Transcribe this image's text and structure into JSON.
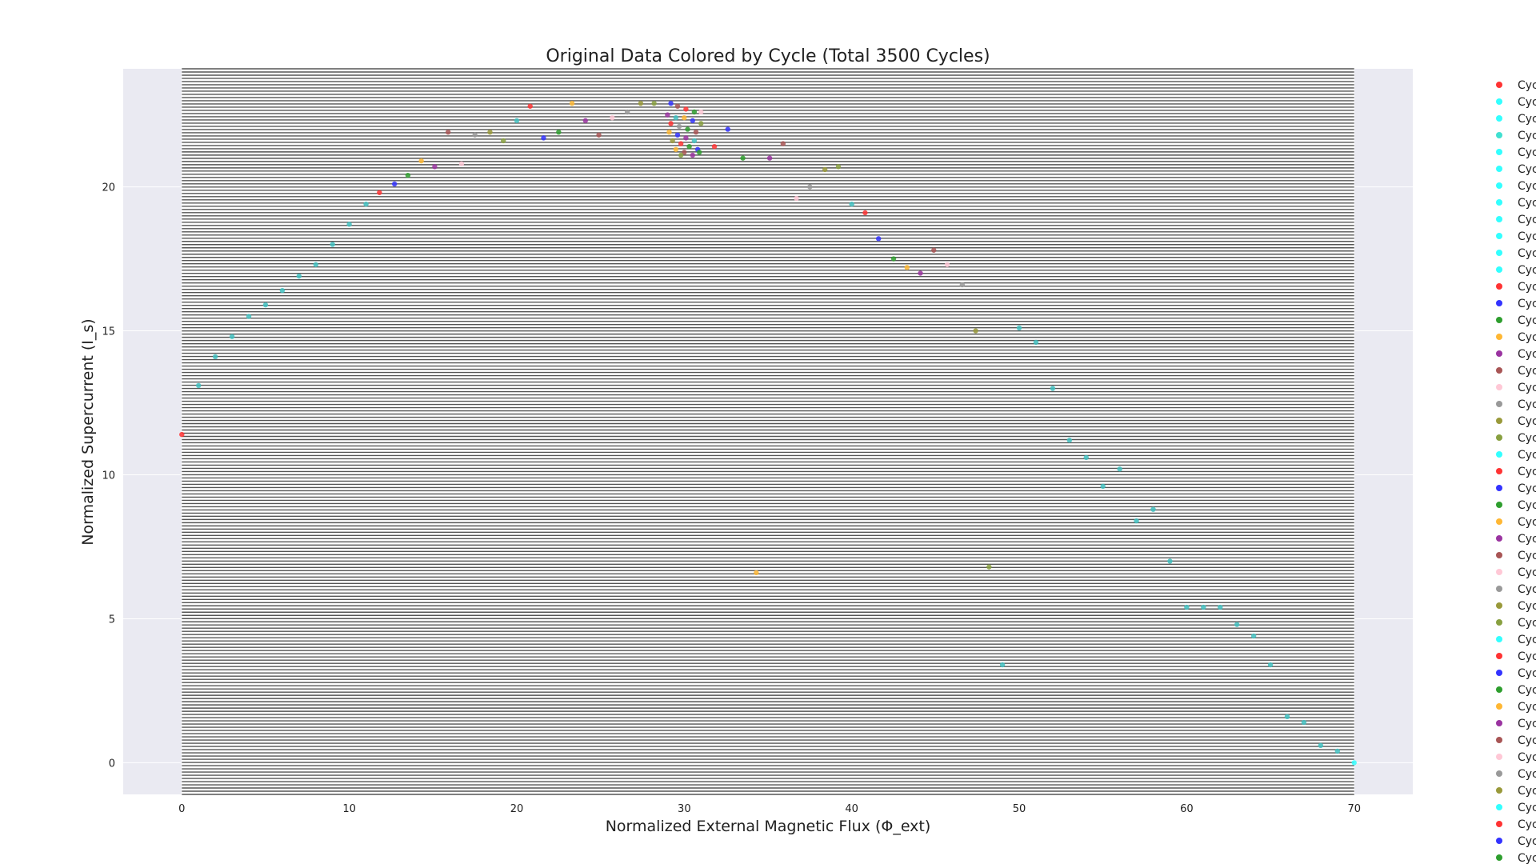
{
  "chart_data": {
    "type": "scatter",
    "title": "Original Data Colored by Cycle (Total 3500 Cycles)",
    "xlabel": "Normalized External Magnetic Flux (Φ_ext)",
    "ylabel": "Normalized Supercurrent (I_s)",
    "xlim": [
      -3.5,
      73.5
    ],
    "ylim": [
      -1.1,
      24.1
    ],
    "x_ticks": [
      0,
      10,
      20,
      30,
      40,
      50,
      60,
      70
    ],
    "y_ticks": [
      0,
      5,
      10,
      15,
      20
    ],
    "grid": true,
    "background": "#eaeaf2",
    "line_region": {
      "x_start": 0,
      "x_end": 70,
      "y_start": -1.1,
      "y_end": 24.1,
      "line_count": 228,
      "color": "#555555"
    },
    "legend": {
      "placement": "outside-right",
      "entries": [
        {
          "label": "Cyc",
          "color": "#ff3333"
        },
        {
          "label": "Cyc",
          "color": "#33ffff"
        },
        {
          "label": "Cyc",
          "color": "#33ffff"
        },
        {
          "label": "Cyc",
          "color": "#40e0d0"
        },
        {
          "label": "Cyc",
          "color": "#33ffff"
        },
        {
          "label": "Cyc",
          "color": "#33ffff"
        },
        {
          "label": "Cyc",
          "color": "#33ffff"
        },
        {
          "label": "Cyc",
          "color": "#33ffff"
        },
        {
          "label": "Cyc",
          "color": "#33ffff"
        },
        {
          "label": "Cyc",
          "color": "#33ffff"
        },
        {
          "label": "Cyc",
          "color": "#33ffff"
        },
        {
          "label": "Cyc",
          "color": "#33ffff"
        },
        {
          "label": "Cyc",
          "color": "#ff3333"
        },
        {
          "label": "Cyc",
          "color": "#3333ff"
        },
        {
          "label": "Cyc",
          "color": "#2e9e2e"
        },
        {
          "label": "Cyc",
          "color": "#ffb733"
        },
        {
          "label": "Cyc",
          "color": "#9a33a0"
        },
        {
          "label": "Cyc",
          "color": "#a85555"
        },
        {
          "label": "Cyc",
          "color": "#ffc8d6"
        },
        {
          "label": "Cyc",
          "color": "#999999"
        },
        {
          "label": "Cyc",
          "color": "#99993a"
        },
        {
          "label": "Cyc",
          "color": "#88a040"
        },
        {
          "label": "Cyc",
          "color": "#33ffff"
        },
        {
          "label": "Cyc",
          "color": "#ff3333"
        },
        {
          "label": "Cyc",
          "color": "#3333ff"
        },
        {
          "label": "Cyc",
          "color": "#2e9e2e"
        },
        {
          "label": "Cyc",
          "color": "#ffb733"
        },
        {
          "label": "Cyc",
          "color": "#9a33a0"
        },
        {
          "label": "Cyc",
          "color": "#a85555"
        },
        {
          "label": "Cyc",
          "color": "#ffc8d6"
        },
        {
          "label": "Cyc",
          "color": "#999999"
        },
        {
          "label": "Cyc",
          "color": "#99993a"
        },
        {
          "label": "Cyc",
          "color": "#88a040"
        },
        {
          "label": "Cyc",
          "color": "#33ffff"
        },
        {
          "label": "Cyc",
          "color": "#ff3333"
        },
        {
          "label": "Cyc",
          "color": "#3333ff"
        },
        {
          "label": "Cyc",
          "color": "#2e9e2e"
        },
        {
          "label": "Cyc",
          "color": "#ffb733"
        },
        {
          "label": "Cyc",
          "color": "#9a33a0"
        },
        {
          "label": "Cyc",
          "color": "#a85555"
        },
        {
          "label": "Cyc",
          "color": "#ffc8d6"
        },
        {
          "label": "Cyc",
          "color": "#999999"
        },
        {
          "label": "Cyc",
          "color": "#99993a"
        },
        {
          "label": "Cyc",
          "color": "#33ffff"
        },
        {
          "label": "Cyc",
          "color": "#ff3333"
        },
        {
          "label": "Cyc",
          "color": "#3333ff"
        },
        {
          "label": "Cyc",
          "color": "#2e9e2e"
        }
      ]
    },
    "points": [
      {
        "x": 0,
        "y": 11.4,
        "color": "#ff3333"
      },
      {
        "x": 1,
        "y": 13.1,
        "color": "#40c0c0"
      },
      {
        "x": 2,
        "y": 14.1,
        "color": "#40c0c0"
      },
      {
        "x": 3,
        "y": 14.8,
        "color": "#40c0c0"
      },
      {
        "x": 4,
        "y": 15.5,
        "color": "#40c0c0"
      },
      {
        "x": 5,
        "y": 15.9,
        "color": "#40c0c0"
      },
      {
        "x": 6,
        "y": 16.4,
        "color": "#40c0c0"
      },
      {
        "x": 7,
        "y": 16.9,
        "color": "#40c0c0"
      },
      {
        "x": 8,
        "y": 17.3,
        "color": "#40c0c0"
      },
      {
        "x": 9,
        "y": 18.0,
        "color": "#40c0c0"
      },
      {
        "x": 10,
        "y": 18.7,
        "color": "#40c0c0"
      },
      {
        "x": 11,
        "y": 19.4,
        "color": "#40c0c0"
      },
      {
        "x": 11.8,
        "y": 19.8,
        "color": "#ff3333"
      },
      {
        "x": 12.7,
        "y": 20.1,
        "color": "#3333ff"
      },
      {
        "x": 13.5,
        "y": 20.4,
        "color": "#2e9e2e"
      },
      {
        "x": 14.3,
        "y": 20.9,
        "color": "#ffb733"
      },
      {
        "x": 15.1,
        "y": 20.7,
        "color": "#9a33a0"
      },
      {
        "x": 15.9,
        "y": 21.9,
        "color": "#a85555"
      },
      {
        "x": 16.7,
        "y": 20.8,
        "color": "#ffc8d6"
      },
      {
        "x": 17.5,
        "y": 21.8,
        "color": "#999999"
      },
      {
        "x": 18.4,
        "y": 21.9,
        "color": "#99993a"
      },
      {
        "x": 19.2,
        "y": 21.6,
        "color": "#88a040"
      },
      {
        "x": 20.0,
        "y": 22.3,
        "color": "#40c0c0"
      },
      {
        "x": 20.8,
        "y": 22.8,
        "color": "#ff3333"
      },
      {
        "x": 21.6,
        "y": 21.7,
        "color": "#3333ff"
      },
      {
        "x": 22.5,
        "y": 21.9,
        "color": "#2e9e2e"
      },
      {
        "x": 23.3,
        "y": 22.9,
        "color": "#ffb733"
      },
      {
        "x": 24.1,
        "y": 22.3,
        "color": "#9a33a0"
      },
      {
        "x": 24.9,
        "y": 21.8,
        "color": "#a85555"
      },
      {
        "x": 25.7,
        "y": 22.4,
        "color": "#ffc8d6"
      },
      {
        "x": 26.6,
        "y": 22.6,
        "color": "#999999"
      },
      {
        "x": 27.4,
        "y": 22.9,
        "color": "#99993a"
      },
      {
        "x": 28.2,
        "y": 22.9,
        "color": "#88a040"
      },
      {
        "x": 29.2,
        "y": 22.9,
        "color": "#3333ff"
      },
      {
        "x": 29.6,
        "y": 22.8,
        "color": "#a85555"
      },
      {
        "x": 30.1,
        "y": 22.7,
        "color": "#ff3333"
      },
      {
        "x": 30.6,
        "y": 22.6,
        "color": "#2e9e2e"
      },
      {
        "x": 29.0,
        "y": 22.5,
        "color": "#9a33a0"
      },
      {
        "x": 29.5,
        "y": 22.4,
        "color": "#40c0c0"
      },
      {
        "x": 30.0,
        "y": 22.4,
        "color": "#ffb733"
      },
      {
        "x": 30.5,
        "y": 22.3,
        "color": "#3333ff"
      },
      {
        "x": 31.0,
        "y": 22.2,
        "color": "#88a040"
      },
      {
        "x": 29.2,
        "y": 22.2,
        "color": "#ff3333"
      },
      {
        "x": 29.7,
        "y": 22.1,
        "color": "#999999"
      },
      {
        "x": 30.2,
        "y": 22.0,
        "color": "#2e9e2e"
      },
      {
        "x": 30.7,
        "y": 21.9,
        "color": "#a85555"
      },
      {
        "x": 29.1,
        "y": 21.9,
        "color": "#ffb733"
      },
      {
        "x": 29.6,
        "y": 21.8,
        "color": "#3333ff"
      },
      {
        "x": 30.1,
        "y": 21.7,
        "color": "#9a33a0"
      },
      {
        "x": 30.6,
        "y": 21.6,
        "color": "#40c0c0"
      },
      {
        "x": 29.3,
        "y": 21.6,
        "color": "#99993a"
      },
      {
        "x": 29.8,
        "y": 21.5,
        "color": "#ff3333"
      },
      {
        "x": 30.3,
        "y": 21.4,
        "color": "#2e9e2e"
      },
      {
        "x": 30.8,
        "y": 21.3,
        "color": "#3333ff"
      },
      {
        "x": 29.5,
        "y": 21.3,
        "color": "#ffb733"
      },
      {
        "x": 30.0,
        "y": 21.2,
        "color": "#a85555"
      },
      {
        "x": 30.5,
        "y": 21.1,
        "color": "#9a33a0"
      },
      {
        "x": 29.8,
        "y": 21.1,
        "color": "#88a040"
      },
      {
        "x": 30.9,
        "y": 21.2,
        "color": "#2e9e2e"
      },
      {
        "x": 31.0,
        "y": 22.6,
        "color": "#ffc8d6"
      },
      {
        "x": 31.8,
        "y": 21.4,
        "color": "#ff3333"
      },
      {
        "x": 32.6,
        "y": 22.0,
        "color": "#3333ff"
      },
      {
        "x": 33.5,
        "y": 21.0,
        "color": "#2e9e2e"
      },
      {
        "x": 34.3,
        "y": 6.6,
        "color": "#ffb733"
      },
      {
        "x": 35.1,
        "y": 21.0,
        "color": "#9a33a0"
      },
      {
        "x": 35.9,
        "y": 21.5,
        "color": "#a85555"
      },
      {
        "x": 36.7,
        "y": 19.6,
        "color": "#ffc8d6"
      },
      {
        "x": 37.5,
        "y": 20.0,
        "color": "#999999"
      },
      {
        "x": 38.4,
        "y": 20.6,
        "color": "#99993a"
      },
      {
        "x": 39.2,
        "y": 20.7,
        "color": "#88a040"
      },
      {
        "x": 40.0,
        "y": 19.4,
        "color": "#40c0c0"
      },
      {
        "x": 40.8,
        "y": 19.1,
        "color": "#ff3333"
      },
      {
        "x": 41.6,
        "y": 18.2,
        "color": "#3333ff"
      },
      {
        "x": 42.5,
        "y": 17.5,
        "color": "#2e9e2e"
      },
      {
        "x": 43.3,
        "y": 17.2,
        "color": "#ffb733"
      },
      {
        "x": 44.1,
        "y": 17.0,
        "color": "#9a33a0"
      },
      {
        "x": 44.9,
        "y": 17.8,
        "color": "#a85555"
      },
      {
        "x": 45.7,
        "y": 17.3,
        "color": "#ffc8d6"
      },
      {
        "x": 46.6,
        "y": 16.6,
        "color": "#999999"
      },
      {
        "x": 47.4,
        "y": 15.0,
        "color": "#99993a"
      },
      {
        "x": 48.2,
        "y": 6.8,
        "color": "#88a040"
      },
      {
        "x": 49,
        "y": 3.4,
        "color": "#40c0c0"
      },
      {
        "x": 50,
        "y": 15.1,
        "color": "#40c0c0"
      },
      {
        "x": 51,
        "y": 14.6,
        "color": "#40c0c0"
      },
      {
        "x": 52,
        "y": 13.0,
        "color": "#40c0c0"
      },
      {
        "x": 53,
        "y": 11.2,
        "color": "#40c0c0"
      },
      {
        "x": 54,
        "y": 10.6,
        "color": "#40c0c0"
      },
      {
        "x": 55,
        "y": 9.6,
        "color": "#40c0c0"
      },
      {
        "x": 56,
        "y": 10.2,
        "color": "#40c0c0"
      },
      {
        "x": 57,
        "y": 8.4,
        "color": "#40c0c0"
      },
      {
        "x": 58,
        "y": 8.8,
        "color": "#40c0c0"
      },
      {
        "x": 59,
        "y": 7.0,
        "color": "#40c0c0"
      },
      {
        "x": 60,
        "y": 5.4,
        "color": "#40c0c0"
      },
      {
        "x": 61,
        "y": 5.4,
        "color": "#40c0c0"
      },
      {
        "x": 62,
        "y": 5.4,
        "color": "#40c0c0"
      },
      {
        "x": 63,
        "y": 4.8,
        "color": "#40c0c0"
      },
      {
        "x": 64,
        "y": 4.4,
        "color": "#40c0c0"
      },
      {
        "x": 65,
        "y": 3.4,
        "color": "#40c0c0"
      },
      {
        "x": 66,
        "y": 1.6,
        "color": "#40c0c0"
      },
      {
        "x": 67,
        "y": 1.4,
        "color": "#40c0c0"
      },
      {
        "x": 68,
        "y": 0.6,
        "color": "#40c0c0"
      },
      {
        "x": 69,
        "y": 0.4,
        "color": "#40c0c0"
      },
      {
        "x": 70,
        "y": 0.0,
        "color": "#33ffff"
      }
    ]
  }
}
